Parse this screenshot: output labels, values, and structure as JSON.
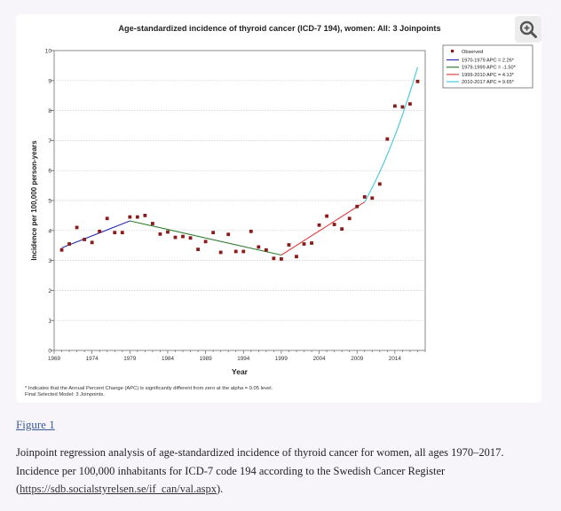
{
  "figure": {
    "link_label": "Figure 1",
    "caption_text": "Joinpoint regression analysis of age-standardized incidence of thyroid cancer for women, all ages 1970–2017. Incidence per 100,000 inhabitants for ICD-7 code 194 according to the Swedish Cancer Register",
    "caption_open": "(",
    "caption_url": "https://sdb.socialstyrelsen.se/if_can/val.aspx",
    "caption_close": ")."
  },
  "zoom": {
    "icon": "zoom-in-icon"
  },
  "chart_data": {
    "type": "scatter",
    "title": "Age-standardized incidence of thyroid cancer (ICD-7 194), women: All: 3 Joinpoints",
    "xlabel": "Year",
    "ylabel": "Incidence per 100,000 person-years",
    "xlim": [
      1969,
      2018
    ],
    "ylim": [
      0,
      10
    ],
    "xticks": [
      1969,
      1974,
      1979,
      1984,
      1989,
      1994,
      1999,
      2004,
      2009,
      2014
    ],
    "yticks": [
      0,
      1,
      2,
      3,
      4,
      5,
      6,
      7,
      8,
      9,
      10
    ],
    "grid": true,
    "legend_position": "outside-top-right",
    "observed": {
      "name": "Observed",
      "color": "#8b1a1a",
      "x": [
        1970,
        1971,
        1972,
        1973,
        1974,
        1975,
        1976,
        1977,
        1978,
        1979,
        1980,
        1981,
        1982,
        1983,
        1984,
        1985,
        1986,
        1987,
        1988,
        1989,
        1990,
        1991,
        1992,
        1993,
        1994,
        1995,
        1996,
        1997,
        1998,
        1999,
        2000,
        2001,
        2002,
        2003,
        2004,
        2005,
        2006,
        2007,
        2008,
        2009,
        2010,
        2011,
        2012,
        2013,
        2014,
        2015,
        2016,
        2017
      ],
      "y": [
        3.35,
        3.55,
        4.1,
        3.7,
        3.6,
        3.97,
        4.4,
        3.93,
        3.93,
        4.45,
        4.45,
        4.5,
        4.23,
        3.88,
        3.95,
        3.77,
        3.8,
        3.75,
        3.37,
        3.63,
        3.93,
        3.27,
        3.87,
        3.3,
        3.3,
        3.97,
        3.45,
        3.35,
        3.07,
        3.05,
        3.52,
        3.13,
        3.55,
        3.58,
        4.18,
        4.48,
        4.2,
        4.05,
        4.4,
        4.8,
        5.12,
        5.08,
        5.55,
        7.05,
        8.15,
        8.12,
        8.22,
        8.97
      ]
    },
    "series": [
      {
        "name": "1970-1979 APC = 2.26*",
        "color": "#2b2bb0",
        "x": [
          1970,
          1979
        ],
        "y": [
          3.42,
          4.32
        ]
      },
      {
        "name": "1979-1999 APC = -1.50*",
        "color": "#2e7d2e",
        "x": [
          1979,
          1999
        ],
        "y": [
          4.32,
          3.18
        ]
      },
      {
        "name": "1999-2010 APC = 4.13*",
        "color": "#e04040",
        "x": [
          1999,
          2010
        ],
        "y": [
          3.18,
          4.95
        ]
      },
      {
        "name": "2010-2017 APC = 9.65*",
        "color": "#40c8d8",
        "x": [
          2010,
          2017
        ],
        "y": [
          4.95,
          9.45
        ]
      }
    ],
    "footnote_1": "* Indicates that the Annual Percent Change (APC) is significantly different from zero at the alpha = 0.05 level.",
    "footnote_2": "Final Selected Model: 3 Joinpoints."
  }
}
